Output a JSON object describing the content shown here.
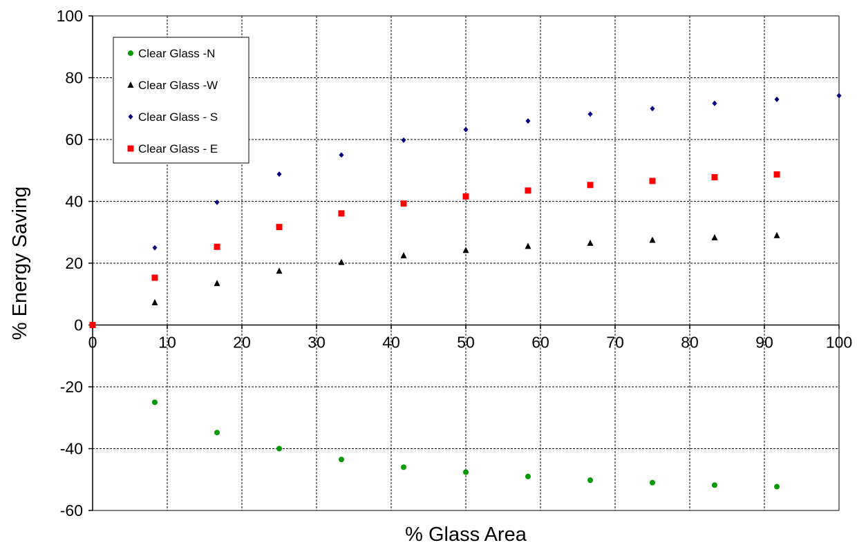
{
  "chart_data": {
    "type": "scatter",
    "title": "",
    "xlabel": "% Glass Area",
    "ylabel": "% Energy Saving",
    "xlim": [
      0,
      100
    ],
    "ylim": [
      -60,
      100
    ],
    "x_ticks": [
      0,
      10,
      20,
      30,
      40,
      50,
      60,
      70,
      80,
      90,
      100
    ],
    "y_ticks": [
      -60,
      -40,
      -20,
      0,
      20,
      40,
      60,
      80,
      100
    ],
    "grid": true,
    "legend_position": "top-left",
    "series": [
      {
        "name": "Clear Glass -N",
        "marker": "circle",
        "color": "#009900",
        "points": [
          [
            0,
            0
          ],
          [
            8.33,
            -25
          ],
          [
            16.67,
            -34.8
          ],
          [
            25,
            -40
          ],
          [
            33.33,
            -43.5
          ],
          [
            41.67,
            -46
          ],
          [
            50,
            -47.6
          ],
          [
            58.33,
            -49
          ],
          [
            66.67,
            -50.2
          ],
          [
            75,
            -51
          ],
          [
            83.33,
            -51.8
          ],
          [
            91.67,
            -52.3
          ]
        ]
      },
      {
        "name": "Clear Glass -W",
        "marker": "triangle",
        "color": "#000000",
        "points": [
          [
            0,
            0
          ],
          [
            8.33,
            7.3
          ],
          [
            16.67,
            13.5
          ],
          [
            25,
            17.5
          ],
          [
            33.33,
            20.3
          ],
          [
            41.67,
            22.5
          ],
          [
            50,
            24.2
          ],
          [
            58.33,
            25.5
          ],
          [
            66.67,
            26.5
          ],
          [
            75,
            27.5
          ],
          [
            83.33,
            28.3
          ],
          [
            91.67,
            29
          ]
        ]
      },
      {
        "name": "Clear Glass - S",
        "marker": "diamond",
        "color": "#000080",
        "points": [
          [
            0,
            0
          ],
          [
            8.33,
            25
          ],
          [
            16.67,
            39.7
          ],
          [
            25,
            48.8
          ],
          [
            33.33,
            55
          ],
          [
            41.67,
            59.8
          ],
          [
            50,
            63.2
          ],
          [
            58.33,
            66
          ],
          [
            66.67,
            68.2
          ],
          [
            75,
            70
          ],
          [
            83.33,
            71.7
          ],
          [
            91.67,
            73
          ],
          [
            100,
            74.2
          ]
        ]
      },
      {
        "name": "Clear Glass - E",
        "marker": "square",
        "color": "#ff0000",
        "points": [
          [
            0,
            0
          ],
          [
            8.33,
            15.3
          ],
          [
            16.67,
            25.3
          ],
          [
            25,
            31.7
          ],
          [
            33.33,
            36.1
          ],
          [
            41.67,
            39.3
          ],
          [
            50,
            41.6
          ],
          [
            58.33,
            43.5
          ],
          [
            66.67,
            45.3
          ],
          [
            75,
            46.6
          ],
          [
            83.33,
            47.8
          ],
          [
            91.67,
            48.7
          ]
        ]
      }
    ]
  }
}
